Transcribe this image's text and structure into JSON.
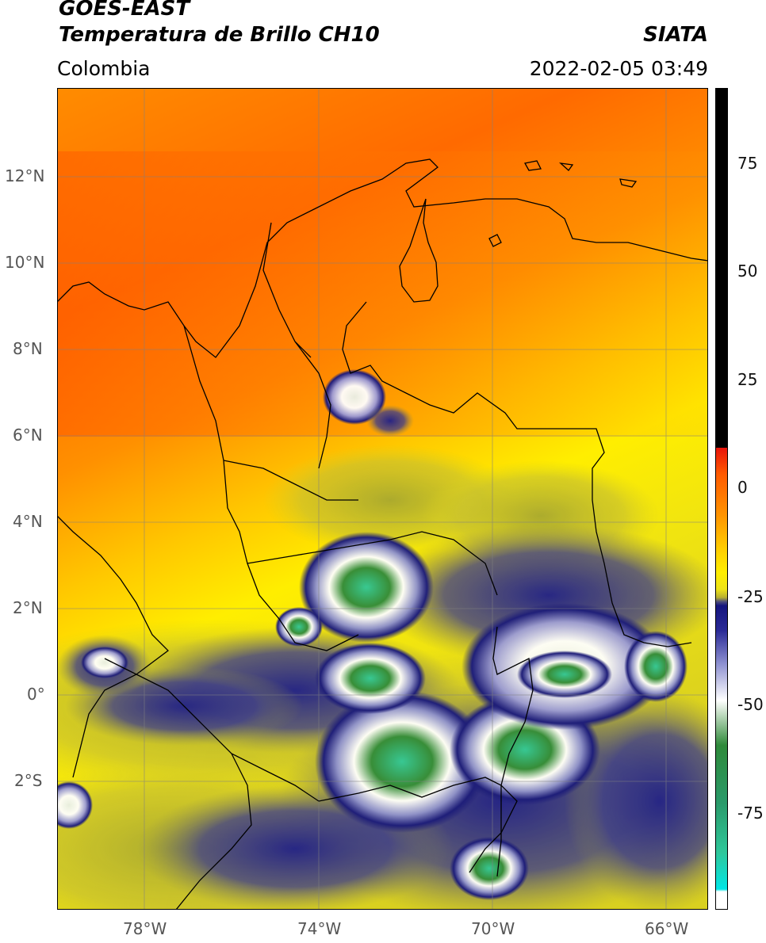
{
  "header": {
    "title_line1": "GOES-EAST",
    "title_line2": "Temperatura de Brillo CH10",
    "source": "SIATA",
    "region": "Colombia",
    "datetime": "2022-02-05 03:49"
  },
  "axes": {
    "lat_labels": [
      "12°N",
      "10°N",
      "8°N",
      "6°N",
      "4°N",
      "2°N",
      "0°",
      "2°S"
    ],
    "lon_labels": [
      "78°W",
      "74°W",
      "70°W",
      "66°W"
    ]
  },
  "colorbar": {
    "tick_labels": [
      "75",
      "50",
      "25",
      "0",
      "-25",
      "-50",
      "-75"
    ],
    "colors": {
      "black": "#000000",
      "red": "#e8140a",
      "orange": "#ff8a00",
      "yellow": "#ffee00",
      "olive": "#c7c030",
      "navy": "#15157e",
      "white": "#ffffff",
      "green": "#2f8a3a",
      "teal": "#2fc79a",
      "cyan": "#00e6e6"
    }
  }
}
